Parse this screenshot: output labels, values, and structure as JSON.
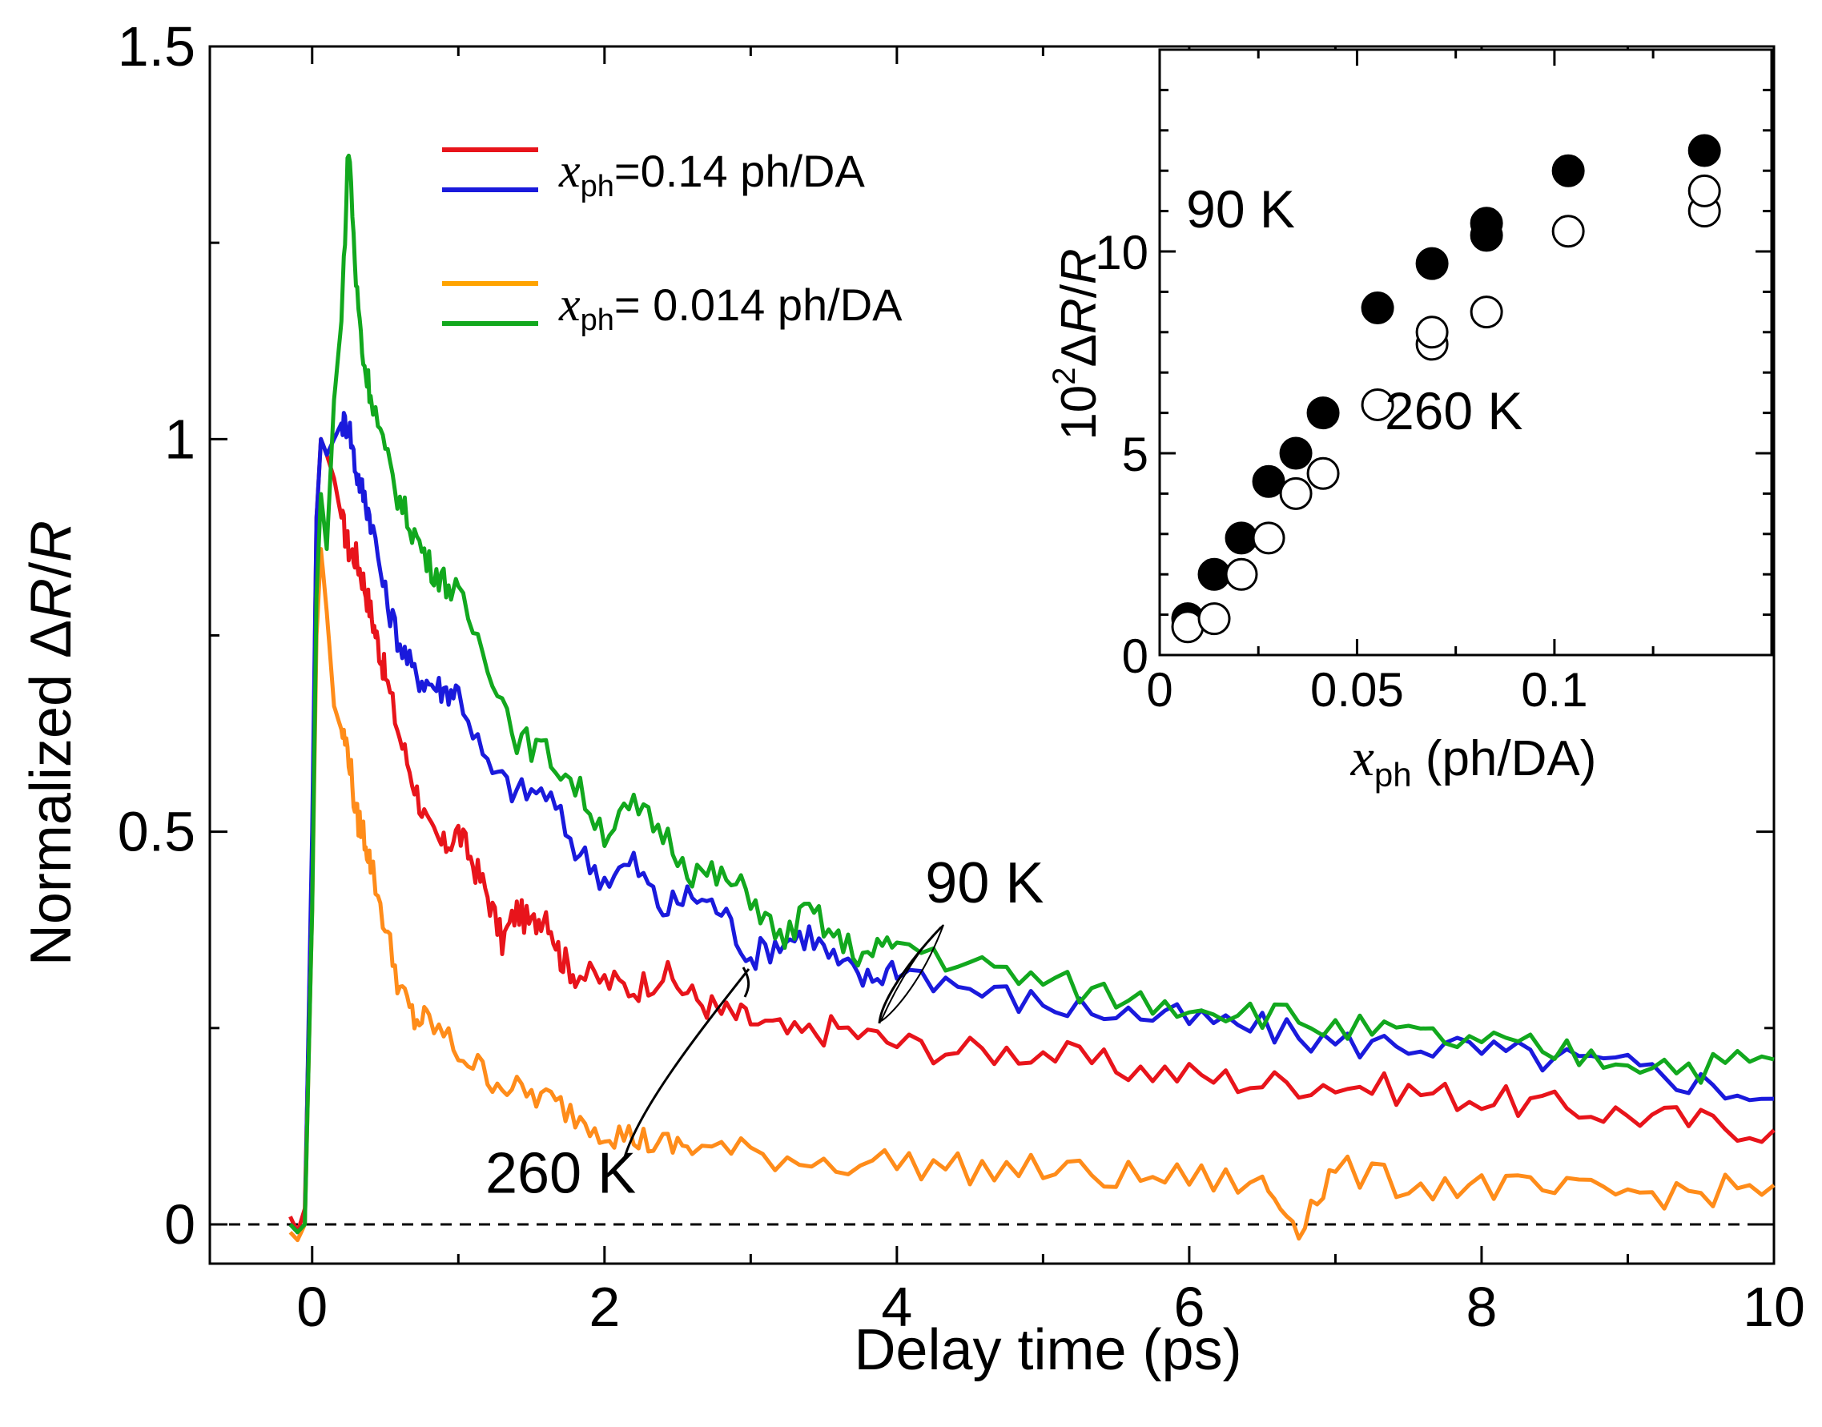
{
  "chart_data": [
    {
      "type": "line",
      "title": "",
      "xlabel": "Delay time (ps)",
      "ylabel": "Normalized ΔR/R",
      "xlim": [
        -0.7,
        10
      ],
      "ylim": [
        -0.05,
        1.5
      ],
      "xticks": [
        0,
        2,
        4,
        6,
        8,
        10
      ],
      "yticks": [
        0,
        0.5,
        1,
        1.5
      ],
      "xtick_labels": [
        "0",
        "2",
        "4",
        "6",
        "8",
        "10"
      ],
      "ytick_labels": [
        "0",
        "0.5",
        "1",
        "1.5"
      ],
      "baseline": 0,
      "legend": [
        {
          "label": "x_ph=0.14 ph/DA",
          "var": "x",
          "sub": "ph",
          "text": "=0.14 ph/DA",
          "colors": [
            "#e8141b",
            "#1a1adc"
          ]
        },
        {
          "label": "x_ph= 0.014 ph/DA",
          "var": "x",
          "sub": "ph",
          "text": "= 0.014 ph/DA",
          "colors": [
            "#ffa300",
            "#12a81e"
          ]
        }
      ],
      "annotations": [
        {
          "text": "90 K",
          "x": 4.6,
          "y": 0.41
        },
        {
          "text": "260 K",
          "x": 1.7,
          "y": 0.04
        }
      ],
      "series": [
        {
          "name": "0.14 ph/DA, 260 K",
          "color": "#e8141b",
          "x": [
            -0.15,
            -0.1,
            -0.05,
            0,
            0.03,
            0.06,
            0.1,
            0.15,
            0.2,
            0.25,
            0.3,
            0.35,
            0.4,
            0.45,
            0.5,
            0.6,
            0.7,
            0.8,
            0.9,
            1.0,
            1.1,
            1.2,
            1.3,
            1.4,
            1.5,
            1.6,
            1.7,
            1.8,
            2.0,
            2.2,
            2.4,
            2.6,
            2.8,
            3.0,
            3.3,
            3.6,
            4.0,
            4.5,
            5.0,
            5.5,
            6.0,
            6.5,
            7.0,
            7.5,
            8.0,
            8.5,
            9.0,
            9.5,
            10.0
          ],
          "values": [
            0.01,
            -0.01,
            0.02,
            0.45,
            0.9,
            1.0,
            0.98,
            0.95,
            0.9,
            0.86,
            0.85,
            0.82,
            0.78,
            0.74,
            0.7,
            0.62,
            0.56,
            0.5,
            0.48,
            0.5,
            0.46,
            0.42,
            0.36,
            0.4,
            0.38,
            0.4,
            0.34,
            0.32,
            0.31,
            0.3,
            0.32,
            0.29,
            0.27,
            0.26,
            0.24,
            0.25,
            0.23,
            0.22,
            0.22,
            0.2,
            0.19,
            0.18,
            0.18,
            0.17,
            0.16,
            0.15,
            0.14,
            0.13,
            0.12
          ]
        },
        {
          "name": "0.14 ph/DA, 90 K",
          "color": "#1a1adc",
          "x": [
            -0.15,
            -0.1,
            -0.05,
            0,
            0.03,
            0.06,
            0.1,
            0.15,
            0.2,
            0.25,
            0.3,
            0.35,
            0.4,
            0.5,
            0.6,
            0.7,
            0.8,
            0.9,
            1.0,
            1.2,
            1.4,
            1.6,
            1.8,
            2.0,
            2.2,
            2.4,
            2.6,
            2.8,
            3.0,
            3.2,
            3.4,
            3.6,
            3.8,
            4.0,
            4.5,
            5.0,
            5.5,
            6.0,
            6.5,
            7.0,
            7.5,
            8.0,
            8.5,
            9.0,
            9.5,
            10.0
          ],
          "values": [
            0.0,
            -0.01,
            0.0,
            0.5,
            0.9,
            1.0,
            0.98,
            1.0,
            1.02,
            1.02,
            0.96,
            0.93,
            0.9,
            0.8,
            0.74,
            0.7,
            0.69,
            0.68,
            0.68,
            0.58,
            0.55,
            0.55,
            0.48,
            0.44,
            0.46,
            0.4,
            0.42,
            0.4,
            0.34,
            0.36,
            0.37,
            0.33,
            0.31,
            0.33,
            0.3,
            0.28,
            0.27,
            0.26,
            0.25,
            0.23,
            0.23,
            0.22,
            0.21,
            0.2,
            0.18,
            0.16
          ]
        },
        {
          "name": "0.014 ph/DA, 260 K",
          "color": "#ff8c1a",
          "x": [
            -0.15,
            -0.1,
            -0.05,
            0,
            0.03,
            0.06,
            0.1,
            0.15,
            0.2,
            0.25,
            0.3,
            0.35,
            0.4,
            0.5,
            0.6,
            0.7,
            0.8,
            1.0,
            1.2,
            1.4,
            1.6,
            1.8,
            2.0,
            2.2,
            2.4,
            2.6,
            3.0,
            3.5,
            4.0,
            4.5,
            5.0,
            5.5,
            6.0,
            6.5,
            6.75,
            7.0,
            7.5,
            8.0,
            8.5,
            9.0,
            9.5,
            10.0
          ],
          "values": [
            -0.01,
            -0.02,
            0.0,
            0.4,
            0.75,
            0.86,
            0.78,
            0.66,
            0.63,
            0.6,
            0.52,
            0.5,
            0.46,
            0.38,
            0.3,
            0.26,
            0.26,
            0.22,
            0.19,
            0.17,
            0.16,
            0.14,
            0.12,
            0.11,
            0.1,
            0.1,
            0.09,
            0.08,
            0.08,
            0.07,
            0.07,
            0.06,
            0.06,
            0.05,
            0.0,
            0.07,
            0.05,
            0.05,
            0.04,
            0.04,
            0.04,
            0.05
          ]
        },
        {
          "name": "0.014 ph/DA, 90 K",
          "color": "#12a81e",
          "x": [
            -0.15,
            -0.1,
            -0.05,
            0,
            0.03,
            0.06,
            0.1,
            0.15,
            0.2,
            0.25,
            0.3,
            0.35,
            0.4,
            0.5,
            0.6,
            0.7,
            0.8,
            0.9,
            1.0,
            1.2,
            1.4,
            1.6,
            1.8,
            2.0,
            2.2,
            2.4,
            2.6,
            2.8,
            3.0,
            3.2,
            3.4,
            3.6,
            3.8,
            4.0,
            4.5,
            5.0,
            5.5,
            6.0,
            6.5,
            7.0,
            7.5,
            8.0,
            8.5,
            9.0,
            9.5,
            10.0
          ],
          "values": [
            0.0,
            -0.01,
            0.0,
            0.4,
            0.8,
            0.93,
            0.86,
            1.05,
            1.15,
            1.38,
            1.2,
            1.1,
            1.06,
            0.98,
            0.92,
            0.88,
            0.84,
            0.82,
            0.8,
            0.72,
            0.62,
            0.6,
            0.56,
            0.5,
            0.53,
            0.5,
            0.45,
            0.44,
            0.42,
            0.36,
            0.4,
            0.36,
            0.34,
            0.36,
            0.33,
            0.31,
            0.29,
            0.28,
            0.27,
            0.25,
            0.24,
            0.23,
            0.22,
            0.21,
            0.2,
            0.21
          ]
        }
      ]
    },
    {
      "type": "scatter",
      "title": "",
      "xlabel": "x_ph (ph/DA)",
      "xlabel_var": "x",
      "xlabel_sub": "ph",
      "xlabel_text": " (ph/DA)",
      "ylabel": "10^2 ΔR/R",
      "ylabel_pre": "10",
      "ylabel_sup": "2",
      "ylabel_mid": "Δ",
      "ylabel_var": "R",
      "ylabel_sep": "/",
      "ylabel_var2": "R",
      "xlim": [
        0,
        0.155
      ],
      "ylim": [
        0,
        15
      ],
      "xticks": [
        0,
        0.05,
        0.1
      ],
      "yticks": [
        0,
        5,
        10
      ],
      "xtick_labels": [
        "0",
        "0.05",
        "0.1"
      ],
      "ytick_labels": [
        "0",
        "5",
        "10"
      ],
      "annotations": [
        {
          "text": "90 K",
          "x": 0.0205,
          "y": 10.6
        },
        {
          "text": "260 K",
          "x": 0.0745,
          "y": 5.6
        }
      ],
      "series": [
        {
          "name": "90 K",
          "filled": true,
          "x": [
            0.0071,
            0.0138,
            0.0207,
            0.0276,
            0.0345,
            0.0414,
            0.0552,
            0.069,
            0.0828,
            0.0828,
            0.1035,
            0.138
          ],
          "values": [
            0.9,
            2.0,
            2.9,
            4.3,
            5.0,
            6.0,
            8.6,
            9.7,
            10.4,
            10.7,
            12.0,
            12.5
          ]
        },
        {
          "name": "260 K",
          "filled": false,
          "x": [
            0.0071,
            0.0138,
            0.0207,
            0.0276,
            0.0345,
            0.0414,
            0.0552,
            0.069,
            0.069,
            0.0828,
            0.1035,
            0.138,
            0.138
          ],
          "values": [
            0.7,
            0.9,
            2.0,
            2.9,
            4.0,
            4.5,
            6.2,
            7.7,
            8.0,
            8.5,
            10.5,
            11.0,
            11.5
          ]
        }
      ]
    }
  ]
}
